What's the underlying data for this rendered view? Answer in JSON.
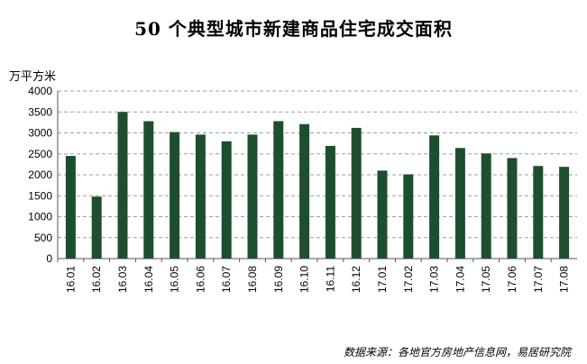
{
  "chart_data": {
    "type": "bar",
    "title": "50 个典型城市新建商品住宅成交面积",
    "unit_label": "万平方米",
    "categories": [
      "16.01",
      "16.02",
      "16.03",
      "16.04",
      "16.05",
      "16.06",
      "16.07",
      "16.08",
      "16.09",
      "16.10",
      "16.11",
      "16.12",
      "17.01",
      "17.02",
      "17.03",
      "17.04",
      "17.05",
      "17.06",
      "17.07",
      "17.08"
    ],
    "values": [
      2450,
      1480,
      3500,
      3280,
      3020,
      2960,
      2800,
      2960,
      3280,
      3210,
      2690,
      3120,
      2100,
      2010,
      2940,
      2640,
      2510,
      2400,
      2210,
      2190
    ],
    "ylim": [
      0,
      4000
    ],
    "yticks": [
      0,
      500,
      1000,
      1500,
      2000,
      2500,
      3000,
      3500,
      4000
    ],
    "grid": true,
    "bar_color": "#1d4f2f",
    "source": "数据来源：各地官方房地产信息网，易居研究院"
  }
}
